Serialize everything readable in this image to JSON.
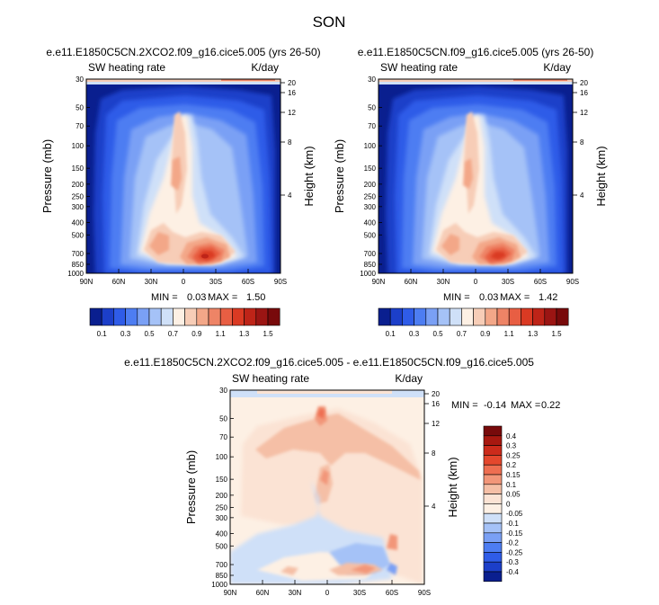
{
  "figure_title": "SON",
  "chart_data": [
    {
      "type": "contour",
      "title": "e.e11.E1850C5CN.2XCO2.f09_g16.cice5.005 (yrs 26-50)",
      "left_label": "SW heating rate",
      "right_label": "K/day",
      "xlabel": "",
      "ylabel": "Pressure (mb)",
      "y2label": "Height (km)",
      "x_ticks": [
        "90N",
        "60N",
        "30N",
        "0",
        "30S",
        "60S",
        "90S"
      ],
      "y_ticks": [
        "30",
        "50",
        "70",
        "100",
        "150",
        "200",
        "250",
        "300",
        "400",
        "500",
        "700",
        "850",
        "1000"
      ],
      "y_tick_values": [
        30,
        50,
        70,
        100,
        150,
        200,
        250,
        300,
        400,
        500,
        700,
        850,
        1000
      ],
      "y2_ticks": [
        "20",
        "16",
        "12",
        "8",
        "4"
      ],
      "min_label": "MIN =",
      "min": "0.03",
      "max_label": "MAX =",
      "max": "1.50"
    },
    {
      "type": "contour",
      "title": "e.e11.E1850C5CN.f09_g16.cice5.005 (yrs 26-50)",
      "left_label": "SW heating rate",
      "right_label": "K/day",
      "xlabel": "",
      "ylabel": "Pressure (mb)",
      "y2label": "Height (km)",
      "x_ticks": [
        "90N",
        "60N",
        "30N",
        "0",
        "30S",
        "60S",
        "90S"
      ],
      "y_ticks": [
        "30",
        "50",
        "70",
        "100",
        "150",
        "200",
        "250",
        "300",
        "400",
        "500",
        "700",
        "850",
        "1000"
      ],
      "y_tick_values": [
        30,
        50,
        70,
        100,
        150,
        200,
        250,
        300,
        400,
        500,
        700,
        850,
        1000
      ],
      "y2_ticks": [
        "20",
        "16",
        "12",
        "8",
        "4"
      ],
      "min_label": "MIN =",
      "min": "0.03",
      "max_label": "MAX =",
      "max": "1.42"
    },
    {
      "type": "contour",
      "title": "e.e11.E1850C5CN.2XCO2.f09_g16.cice5.005 - e.e11.E1850C5CN.f09_g16.cice5.005",
      "left_label": "SW heating rate",
      "right_label": "K/day",
      "xlabel": "",
      "ylabel": "Pressure (mb)",
      "y2label": "Height (km)",
      "x_ticks": [
        "90N",
        "60N",
        "30N",
        "0",
        "30S",
        "60S",
        "90S"
      ],
      "y_ticks": [
        "30",
        "50",
        "70",
        "100",
        "150",
        "200",
        "250",
        "300",
        "400",
        "500",
        "700",
        "850",
        "1000"
      ],
      "y_tick_values": [
        30,
        50,
        70,
        100,
        150,
        200,
        250,
        300,
        400,
        500,
        700,
        850,
        1000
      ],
      "y2_ticks": [
        "20",
        "16",
        "12",
        "8",
        "4"
      ],
      "min_label": "MIN =",
      "min": "-0.14",
      "max_label": "MAX =",
      "max": "0.22"
    }
  ],
  "colorbar_top": {
    "labels": [
      "0.1",
      "0.3",
      "0.5",
      "0.7",
      "0.9",
      "1.1",
      "1.3",
      "1.5"
    ],
    "colors": [
      "#0a1f8f",
      "#1c3fc9",
      "#2f5ce8",
      "#4d7df2",
      "#7aa0f5",
      "#a5c2f7",
      "#cfe0f8",
      "#fdf0e4",
      "#f7cdb7",
      "#f3a788",
      "#ee8466",
      "#e85e43",
      "#da3a23",
      "#be2418",
      "#9b1513",
      "#780a0b"
    ]
  },
  "colorbar_diff": {
    "labels": [
      "0.4",
      "0.3",
      "0.25",
      "0.2",
      "0.15",
      "0.1",
      "0.05",
      "0",
      "-0.05",
      "-0.1",
      "-0.15",
      "-0.2",
      "-0.25",
      "-0.3",
      "-0.4"
    ],
    "colors": [
      "#780a0b",
      "#a81810",
      "#cc2b1b",
      "#e4472d",
      "#ee6e51",
      "#f29679",
      "#f5bfa6",
      "#fbe3d4",
      "#fdf0e4",
      "#cfe0f8",
      "#a5c2f7",
      "#7aa0f5",
      "#4d7df2",
      "#2f5ce8",
      "#1c3fc9",
      "#0a1f8f"
    ]
  }
}
